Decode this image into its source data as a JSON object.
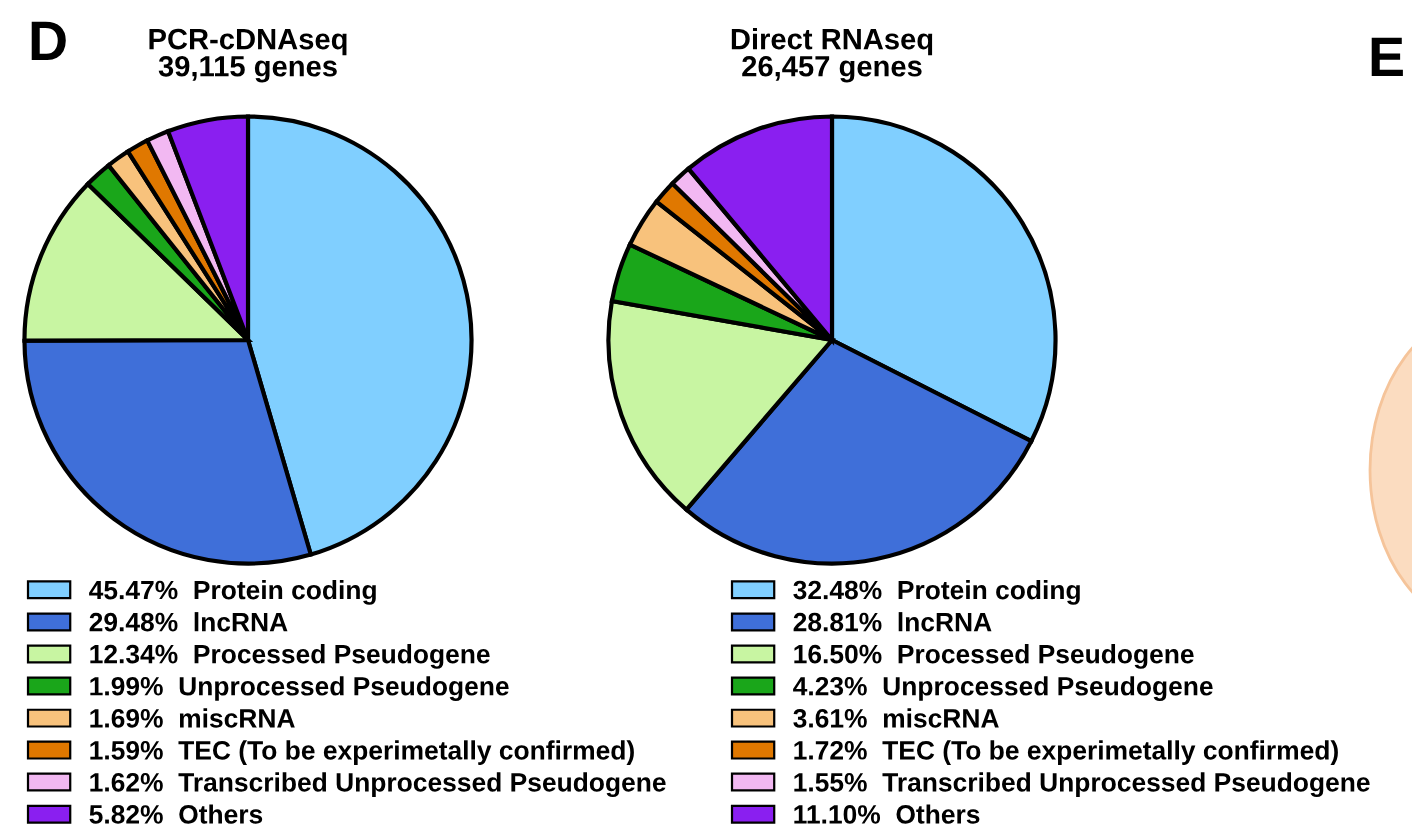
{
  "chart_data": [
    {
      "type": "pie",
      "title": "PCR-cDNAseq",
      "subtitle": "39,115 genes",
      "annotations": [
        "D"
      ],
      "legend": "bottom",
      "categories": [
        "Protein coding",
        "lncRNA",
        "Processed Pseudogene",
        "Unprocessed Pseudogene",
        "miscRNA",
        "TEC (To be experimetally confirmed)",
        "Transcribed Unprocessed Pseudogene",
        "Others"
      ],
      "values": [
        45.47,
        29.48,
        12.34,
        1.99,
        1.69,
        1.59,
        1.62,
        5.82
      ],
      "value_labels": [
        "45.47%",
        "29.48%",
        "12.34%",
        "1.99%",
        "1.69%",
        "1.59%",
        "1.62%",
        "5.82%"
      ],
      "colors": [
        "#80cfff",
        "#3f6fd9",
        "#c8f5a2",
        "#1aa61a",
        "#f8c27c",
        "#e07800",
        "#f2b8f2",
        "#8a1ff0"
      ]
    },
    {
      "type": "pie",
      "title": "Direct RNAseq",
      "subtitle": "26,457 genes",
      "annotations": [
        "E"
      ],
      "legend": "bottom",
      "categories": [
        "Protein coding",
        "lncRNA",
        "Processed Pseudogene",
        "Unprocessed Pseudogene",
        "miscRNA",
        "TEC (To be experimetally confirmed)",
        "Transcribed Unprocessed Pseudogene",
        "Others"
      ],
      "values": [
        32.48,
        28.81,
        16.5,
        4.23,
        3.61,
        1.72,
        1.55,
        11.1
      ],
      "value_labels": [
        "32.48%",
        "28.81%",
        "16.50%",
        "4.23%",
        "3.61%",
        "1.72%",
        "1.55%",
        "11.10%"
      ],
      "colors": [
        "#80cfff",
        "#3f6fd9",
        "#c8f5a2",
        "#1aa61a",
        "#f8c27c",
        "#e07800",
        "#f2b8f2",
        "#8a1ff0"
      ]
    }
  ]
}
